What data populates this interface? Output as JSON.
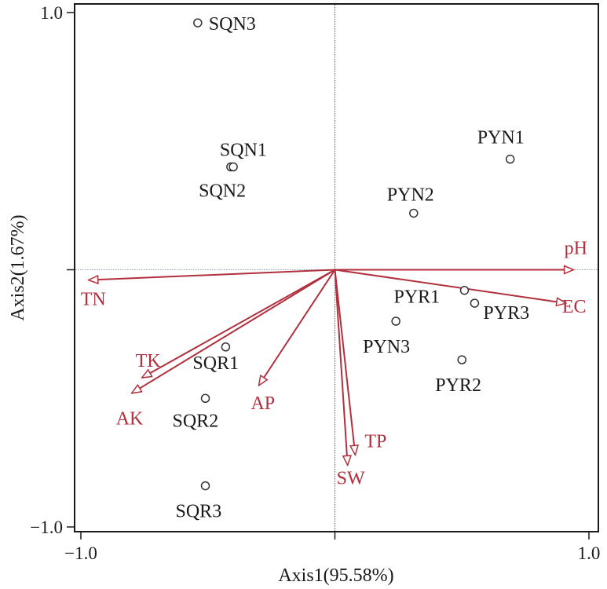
{
  "chart_data": {
    "type": "scatter",
    "subtype": "biplot",
    "title": "",
    "xlabel": "Axis1(95.58%)",
    "ylabel": "Axis2(1.67%)",
    "xlim": [
      -1.0,
      1.0
    ],
    "ylim": [
      -1.0,
      1.0
    ],
    "x_ticks": [
      {
        "value": -1.0,
        "label": "−1.0"
      },
      {
        "value": 1.0,
        "label": "1.0"
      }
    ],
    "y_ticks": [
      {
        "value": 1.0,
        "label": "1.0"
      },
      {
        "value": -1.0,
        "label": "−1.0"
      }
    ],
    "reference_lines": {
      "x": 0,
      "y": 0
    },
    "grid": false,
    "legend": null,
    "vector_color": "#b0303e",
    "point_color": "#333333",
    "samples": [
      {
        "name": "SQN3",
        "x": -0.54,
        "y": 0.96
      },
      {
        "name": "SQN1",
        "x": -0.41,
        "y": 0.4
      },
      {
        "name": "SQN2",
        "x": -0.4,
        "y": 0.4
      },
      {
        "name": "PYN1",
        "x": 0.69,
        "y": 0.43
      },
      {
        "name": "PYN2",
        "x": 0.31,
        "y": 0.22
      },
      {
        "name": "PYR1",
        "x": 0.51,
        "y": -0.08
      },
      {
        "name": "PYR3",
        "x": 0.55,
        "y": -0.13
      },
      {
        "name": "PYN3",
        "x": 0.24,
        "y": -0.2
      },
      {
        "name": "PYR2",
        "x": 0.5,
        "y": -0.35
      },
      {
        "name": "SQR1",
        "x": -0.43,
        "y": -0.3
      },
      {
        "name": "SQR2",
        "x": -0.51,
        "y": -0.5
      },
      {
        "name": "SQR3",
        "x": -0.51,
        "y": -0.84
      }
    ],
    "vectors": [
      {
        "name": "pH",
        "x": 0.94,
        "y": 0.0
      },
      {
        "name": "EC",
        "x": 0.91,
        "y": -0.13
      },
      {
        "name": "TN",
        "x": -0.97,
        "y": -0.04
      },
      {
        "name": "TK",
        "x": -0.76,
        "y": -0.42
      },
      {
        "name": "AK",
        "x": -0.8,
        "y": -0.48
      },
      {
        "name": "AP",
        "x": -0.3,
        "y": -0.45
      },
      {
        "name": "TP",
        "x": 0.08,
        "y": -0.72
      },
      {
        "name": "SW",
        "x": 0.05,
        "y": -0.76
      }
    ]
  }
}
